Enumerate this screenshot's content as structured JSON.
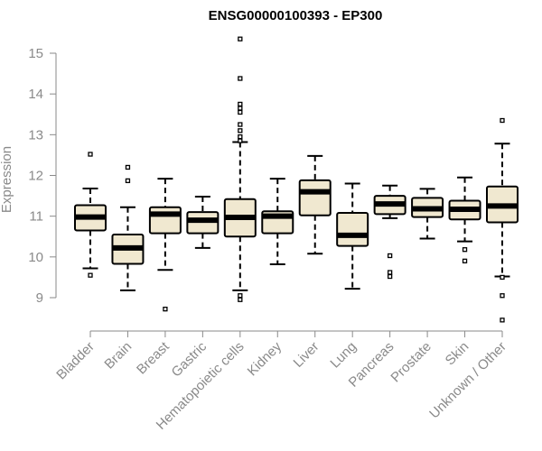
{
  "chart_data": {
    "type": "boxplot",
    "title": "ENSG00000100393 - EP300",
    "xlabel": "",
    "ylabel": "Expression",
    "ylim": [
      8.4,
      15.4
    ],
    "yticks": [
      9,
      10,
      11,
      12,
      13,
      14,
      15
    ],
    "grid": false,
    "box_fill": "#f0e8d0",
    "categories": [
      "Bladder",
      "Brain",
      "Breast",
      "Gastric",
      "Hematopoietic cells",
      "Kidney",
      "Liver",
      "Lung",
      "Pancreas",
      "Prostate",
      "Skin",
      "Unknown / Other"
    ],
    "boxes": [
      {
        "min": 9.72,
        "q1": 10.65,
        "median": 10.98,
        "q3": 11.27,
        "max": 11.68,
        "outliers": [
          9.55,
          12.52
        ]
      },
      {
        "min": 9.18,
        "q1": 9.83,
        "median": 10.22,
        "q3": 10.55,
        "max": 11.22,
        "outliers": [
          11.87,
          12.2
        ]
      },
      {
        "min": 9.68,
        "q1": 10.58,
        "median": 11.05,
        "q3": 11.22,
        "max": 11.92,
        "outliers": [
          8.72
        ]
      },
      {
        "min": 10.22,
        "q1": 10.58,
        "median": 10.9,
        "q3": 11.1,
        "max": 11.48,
        "outliers": []
      },
      {
        "min": 9.18,
        "q1": 10.5,
        "median": 10.97,
        "q3": 11.42,
        "max": 12.82,
        "outliers": [
          8.95,
          9.05,
          12.85,
          12.95,
          13.1,
          13.25,
          13.55,
          13.65,
          13.75,
          14.38,
          15.35
        ]
      },
      {
        "min": 9.82,
        "q1": 10.58,
        "median": 11.0,
        "q3": 11.12,
        "max": 11.92,
        "outliers": []
      },
      {
        "min": 10.08,
        "q1": 11.02,
        "median": 11.6,
        "q3": 11.88,
        "max": 12.48,
        "outliers": []
      },
      {
        "min": 9.22,
        "q1": 10.27,
        "median": 10.53,
        "q3": 11.08,
        "max": 11.8,
        "outliers": []
      },
      {
        "min": 10.95,
        "q1": 11.05,
        "median": 11.3,
        "q3": 11.5,
        "max": 11.75,
        "outliers": [
          9.52,
          9.62,
          10.03
        ]
      },
      {
        "min": 10.45,
        "q1": 10.98,
        "median": 11.18,
        "q3": 11.45,
        "max": 11.67,
        "outliers": []
      },
      {
        "min": 10.38,
        "q1": 10.92,
        "median": 11.17,
        "q3": 11.38,
        "max": 11.95,
        "outliers": [
          9.9,
          10.18
        ]
      },
      {
        "min": 9.52,
        "q1": 10.85,
        "median": 11.25,
        "q3": 11.73,
        "max": 12.78,
        "outliers": [
          8.45,
          9.05,
          9.5,
          13.35
        ]
      }
    ]
  }
}
